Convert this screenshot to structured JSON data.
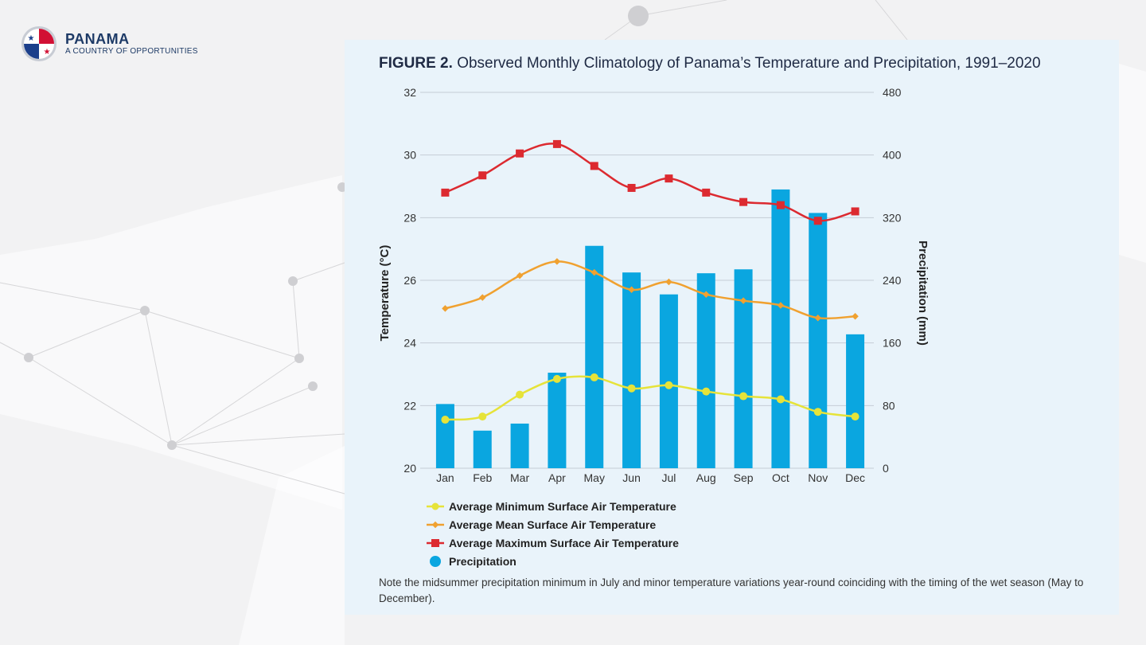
{
  "brand": {
    "title": "PANAMA",
    "subtitle": "A COUNTRY OF OPPORTUNITIES"
  },
  "figure": {
    "label": "FIGURE 2.",
    "title": "Observed Monthly Climatology of Panama’s Temperature and Precipitation, 1991–2020",
    "note": "Note the midsummer precipitation minimum in July and minor temperature variations year-round coinciding with the timing of the wet season (May to December)."
  },
  "colors": {
    "min_temp": "#e6e339",
    "mean_temp": "#f0a130",
    "max_temp": "#dc2a30",
    "precip": "#0aa6e0"
  },
  "chart_data": {
    "type": "bar",
    "categories": [
      "Jan",
      "Feb",
      "Mar",
      "Apr",
      "May",
      "Jun",
      "Jul",
      "Aug",
      "Sep",
      "Oct",
      "Nov",
      "Dec"
    ],
    "xlabel": "",
    "ylabel": "Temperature (°C)",
    "y2label": "Precipitation (mm)",
    "ylim": [
      20,
      32
    ],
    "y2lim": [
      0,
      480
    ],
    "yticks": [
      "20",
      "22",
      "24",
      "26",
      "28",
      "30",
      "32"
    ],
    "y2ticks": [
      "0",
      "80",
      "160",
      "240",
      "320",
      "400",
      "480"
    ],
    "grid": true,
    "legend_position": "bottom-left",
    "series": [
      {
        "name": "Average Minimum Surface Air Temperature",
        "type": "line",
        "axis": "left",
        "marker": "circle",
        "values": [
          21.55,
          21.65,
          22.35,
          22.85,
          22.9,
          22.55,
          22.65,
          22.45,
          22.3,
          22.2,
          21.8,
          21.65
        ]
      },
      {
        "name": "Average Mean Surface Air Temperature",
        "type": "line",
        "axis": "left",
        "marker": "diamond",
        "values": [
          25.1,
          25.45,
          26.15,
          26.6,
          26.25,
          25.7,
          25.95,
          25.55,
          25.35,
          25.2,
          24.8,
          24.85
        ]
      },
      {
        "name": "Average Maximum Surface Air Temperature",
        "type": "line",
        "axis": "left",
        "marker": "square",
        "values": [
          28.8,
          29.35,
          30.05,
          30.35,
          29.65,
          28.95,
          29.25,
          28.8,
          28.5,
          28.4,
          27.9,
          28.2
        ]
      },
      {
        "name": "Precipitation",
        "type": "bar",
        "axis": "right",
        "marker": "circle",
        "values": [
          82,
          48,
          57,
          122,
          284,
          250,
          222,
          249,
          254,
          356,
          326,
          171
        ]
      }
    ]
  }
}
